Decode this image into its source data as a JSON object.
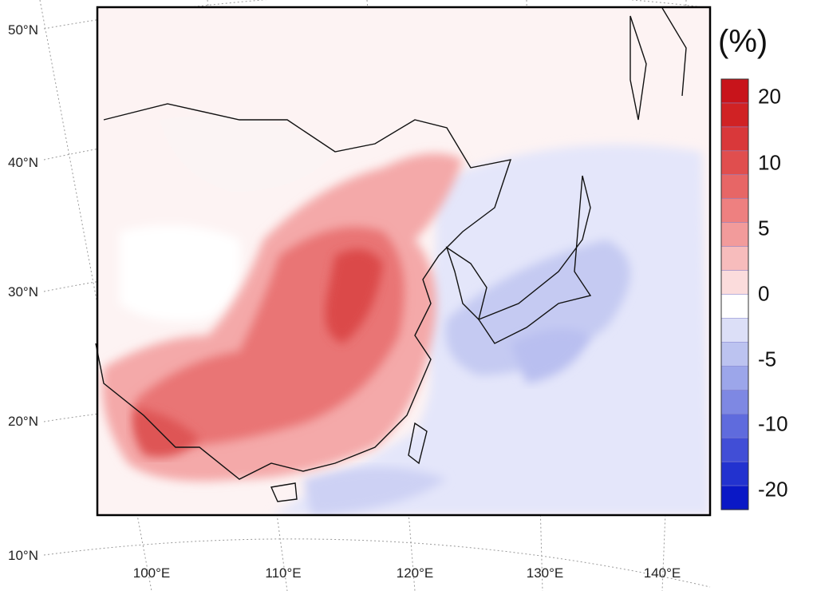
{
  "colorbar": {
    "title": "(%)",
    "ticks": [
      "20",
      "10",
      "5",
      "0",
      "-5",
      "-10",
      "-20"
    ],
    "colors": [
      "#c8141b",
      "#d02224",
      "#d9383a",
      "#e04e4e",
      "#e76666",
      "#ee8080",
      "#f29b9b",
      "#f7bcbc",
      "#fbdcdc",
      "#ffffff",
      "#dcdff7",
      "#bcc3f0",
      "#9ca6ea",
      "#7e88e3",
      "#5f6bdd",
      "#414ed6",
      "#2232cf",
      "#0a18c6"
    ]
  },
  "latitude_labels": [
    "50°N",
    "40°N",
    "30°N",
    "20°N",
    "10°N"
  ],
  "longitude_labels": [
    "100°E",
    "110°E",
    "120°E",
    "130°E",
    "140°E"
  ],
  "legend_levels": [
    20,
    10,
    5,
    0,
    -5,
    -10,
    -20
  ]
}
